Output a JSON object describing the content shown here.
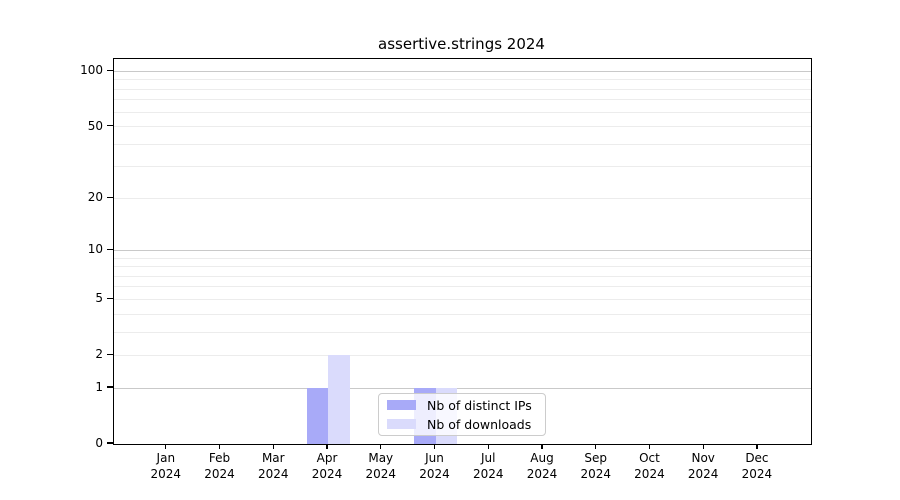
{
  "chart_data": {
    "type": "bar",
    "title": "assertive.strings 2024",
    "x_tick_months": [
      "Jan",
      "Feb",
      "Mar",
      "Apr",
      "May",
      "Jun",
      "Jul",
      "Aug",
      "Sep",
      "Oct",
      "Nov",
      "Dec"
    ],
    "x_year_label": "2024",
    "series": [
      {
        "name": "Nb of distinct IPs",
        "color": "#a8aaf8",
        "values": [
          0,
          0,
          0,
          1,
          0,
          1,
          0,
          0,
          0,
          0,
          0,
          0
        ]
      },
      {
        "name": "Nb of downloads",
        "color": "#dadbfc",
        "values": [
          0,
          0,
          0,
          2,
          0,
          1,
          0,
          0,
          0,
          0,
          0,
          0
        ]
      }
    ],
    "y_scale": "log1p",
    "ylim": [
      0,
      115
    ],
    "y_ticks": [
      0,
      1,
      2,
      5,
      10,
      20,
      50,
      100
    ],
    "y_tick_labels": [
      "0",
      "1",
      "2",
      "5",
      "10",
      "20",
      "50",
      "100"
    ],
    "y_gridlines_major": [
      1,
      10,
      100
    ],
    "y_gridlines_minor": [
      2,
      3,
      4,
      5,
      6,
      7,
      8,
      9,
      20,
      30,
      40,
      50,
      60,
      70,
      80,
      90
    ],
    "grid": true,
    "legend_position": "lower center",
    "colors": {
      "grid_major": "#c9c9c9",
      "grid_minor": "#ececec",
      "axis": "#000000",
      "background": "#ffffff"
    }
  }
}
